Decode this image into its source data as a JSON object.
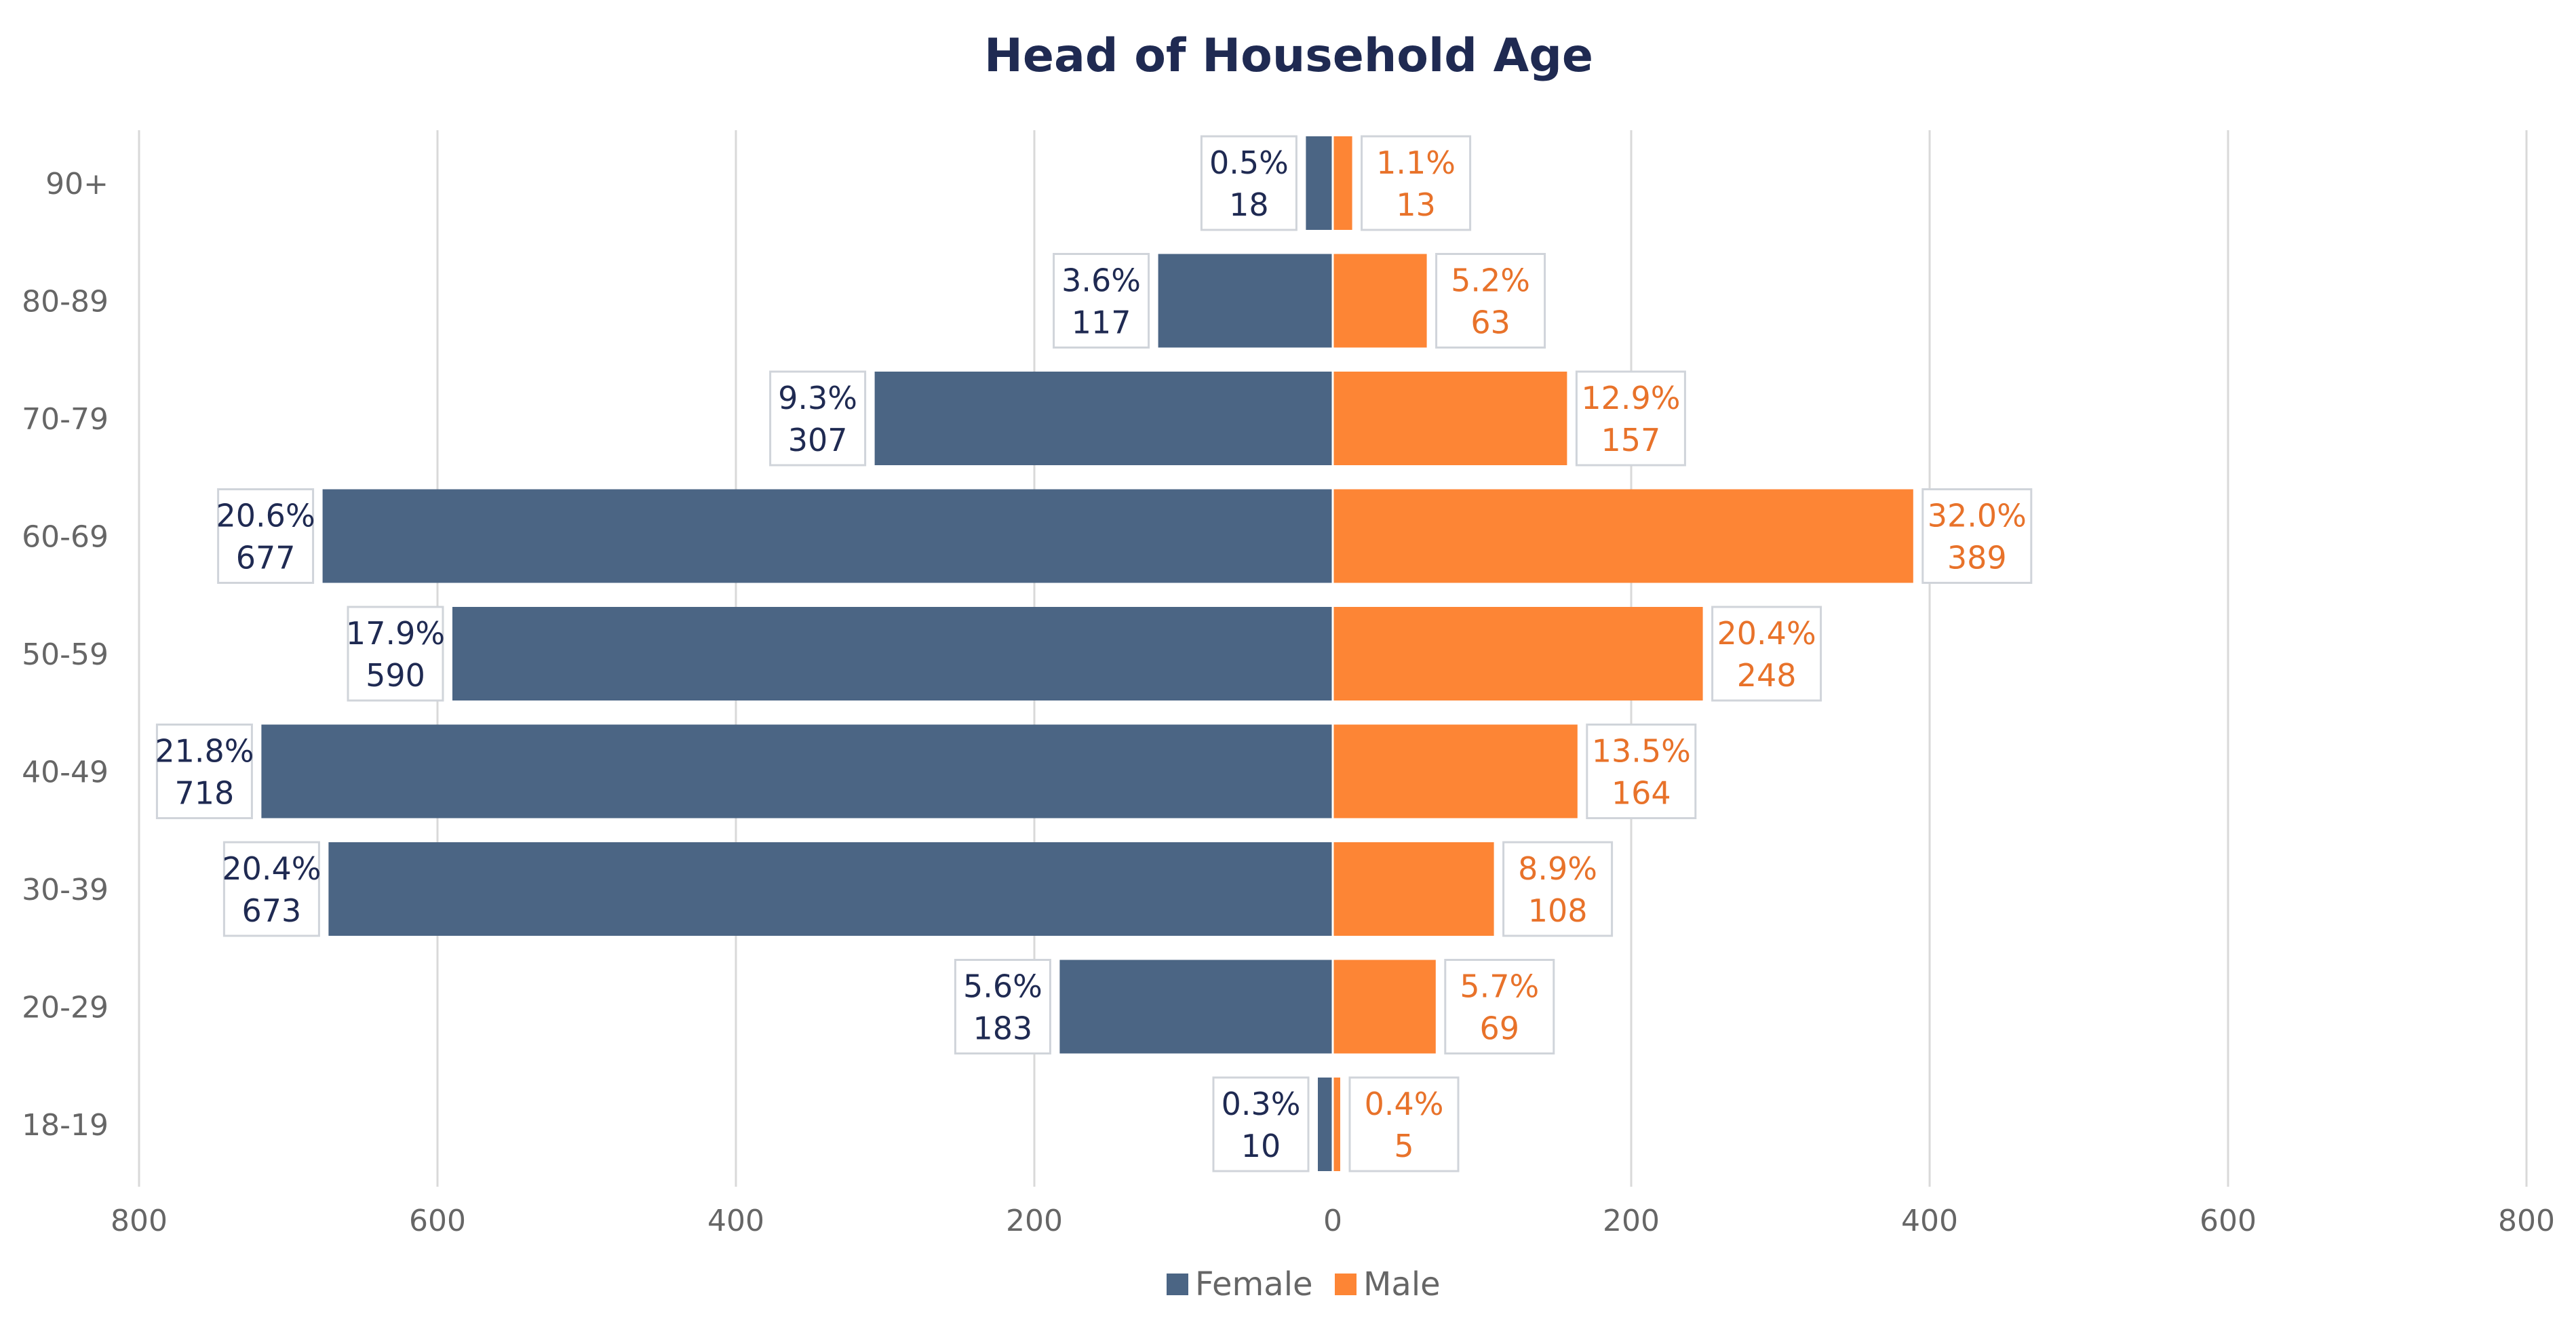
{
  "colors": {
    "female": "#4b6584",
    "female_text": "#1f2a52",
    "male": "#fd8535",
    "male_text": "#e8722a",
    "title": "#1f2a52",
    "axis_text": "#666666",
    "grid": "#d9d9d9",
    "label_border": "#d0d4da",
    "label_bg": "#ffffff"
  },
  "chart_data": {
    "type": "bar",
    "orientation": "horizontal",
    "layout": "diverging (population pyramid)",
    "title": "Head of Household Age",
    "categories": [
      "90+",
      "80-89",
      "70-79",
      "60-69",
      "50-59",
      "40-49",
      "30-39",
      "20-29",
      "18-19"
    ],
    "series": [
      {
        "name": "Female",
        "side": "left",
        "color": "#4b6584",
        "values": [
          18,
          117,
          307,
          677,
          590,
          718,
          673,
          183,
          10
        ],
        "percent_labels": [
          "0.5%",
          "3.6%",
          "9.3%",
          "20.6%",
          "17.9%",
          "21.8%",
          "20.4%",
          "5.6%",
          "0.3%"
        ]
      },
      {
        "name": "Male",
        "side": "right",
        "color": "#fd8535",
        "values": [
          13,
          63,
          157,
          389,
          248,
          164,
          108,
          69,
          5
        ],
        "percent_labels": [
          "1.1%",
          "5.2%",
          "12.9%",
          "32.0%",
          "20.4%",
          "13.5%",
          "8.9%",
          "5.7%",
          "0.4%"
        ]
      }
    ],
    "x_ticks": [
      "800",
      "600",
      "400",
      "200",
      "0",
      "200",
      "400",
      "600",
      "800"
    ],
    "xlim": [
      -800,
      800
    ],
    "grid": "vertical",
    "legend": "bottom-center"
  }
}
